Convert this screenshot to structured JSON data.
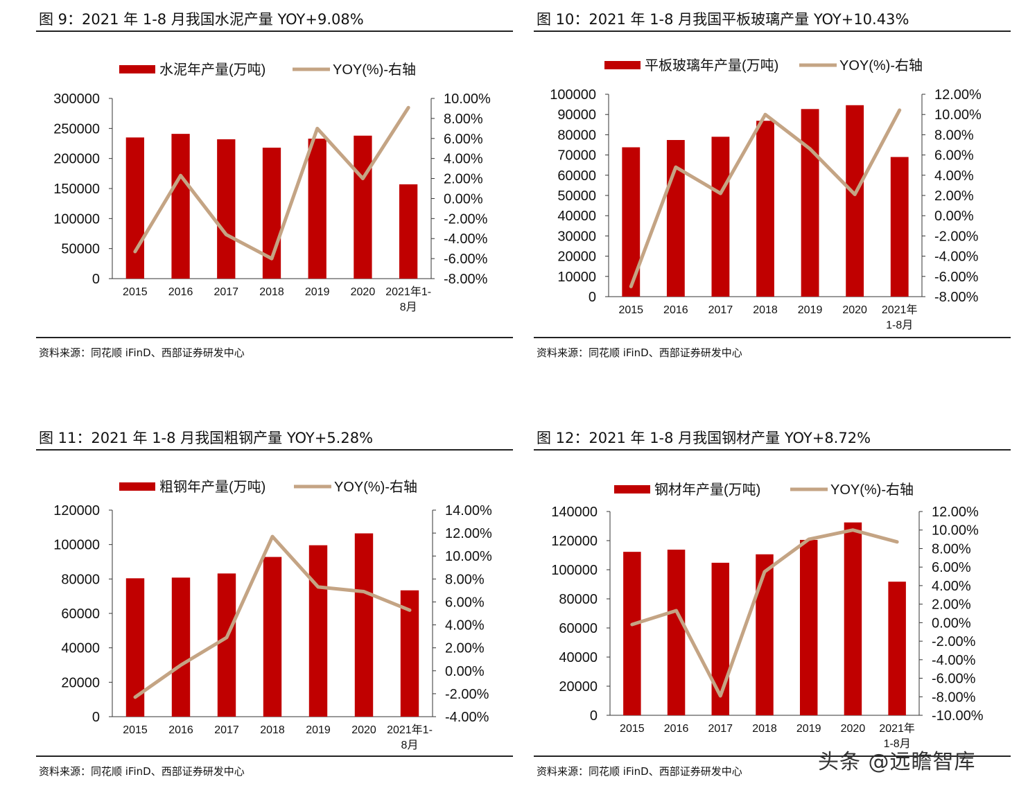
{
  "colors": {
    "bar": "#C00000",
    "line": "#C4A484",
    "axis": "#333333"
  },
  "watermark": "头条 @远瞻智库",
  "panels": [
    {
      "title": "图 9：2021 年 1-8 月我国水泥产量 YOY+9.08%",
      "source": "资料来源：同花顺 iFinD、西部证券研发中心",
      "chart_data": {
        "type": "bar+line",
        "categories": [
          [
            "2015"
          ],
          [
            "2016"
          ],
          [
            "2017"
          ],
          [
            "2018"
          ],
          [
            "2019"
          ],
          [
            "2020"
          ],
          [
            "2021年1-",
            "8月"
          ]
        ],
        "series": [
          {
            "name": "水泥年产量(万吨)",
            "type": "bar",
            "axis": "left",
            "values": [
              235000,
              241000,
              232000,
              218000,
              233000,
              238000,
              157000
            ]
          },
          {
            "name": "YOY(%)-右轴",
            "type": "line",
            "axis": "right",
            "values": [
              -5.3,
              2.3,
              -3.6,
              -6.0,
              7.0,
              2.0,
              9.08
            ]
          }
        ],
        "left_axis": {
          "min": 0,
          "max": 300000,
          "step": 50000,
          "ticks": [
            "0",
            "50000",
            "100000",
            "150000",
            "200000",
            "250000",
            "300000"
          ]
        },
        "right_axis": {
          "min": -8,
          "max": 10,
          "step": 2,
          "ticks": [
            "-8.00%",
            "-6.00%",
            "-4.00%",
            "-2.00%",
            "0.00%",
            "2.00%",
            "4.00%",
            "6.00%",
            "8.00%",
            "10.00%"
          ]
        }
      }
    },
    {
      "title": "图 10：2021 年 1-8 月我国平板玻璃产量 YOY+10.43%",
      "source": "资料来源：同花顺 iFinD、西部证券研发中心",
      "chart_data": {
        "type": "bar+line",
        "categories": [
          [
            "2015"
          ],
          [
            "2016"
          ],
          [
            "2017"
          ],
          [
            "2018"
          ],
          [
            "2019"
          ],
          [
            "2020"
          ],
          [
            "2021年",
            "1-8月"
          ]
        ],
        "series": [
          {
            "name": "平板玻璃年产量(万吨)",
            "type": "bar",
            "axis": "left",
            "values": [
              73800,
              77400,
              79000,
              86900,
              92700,
              94600,
              69000
            ]
          },
          {
            "name": "YOY(%)-右轴",
            "type": "line",
            "axis": "right",
            "values": [
              -7.0,
              4.8,
              2.2,
              10.0,
              6.6,
              2.1,
              10.43
            ]
          }
        ],
        "left_axis": {
          "min": 0,
          "max": 100000,
          "step": 10000,
          "ticks": [
            "0",
            "10000",
            "20000",
            "30000",
            "40000",
            "50000",
            "60000",
            "70000",
            "80000",
            "90000",
            "100000"
          ]
        },
        "right_axis": {
          "min": -8,
          "max": 12,
          "step": 2,
          "ticks": [
            "-8.00%",
            "-6.00%",
            "-4.00%",
            "-2.00%",
            "0.00%",
            "2.00%",
            "4.00%",
            "6.00%",
            "8.00%",
            "10.00%",
            "12.00%"
          ]
        }
      }
    },
    {
      "title": "图 11：2021 年 1-8 月我国粗钢产量 YOY+5.28%",
      "source": "资料来源：同花顺 iFinD、西部证券研发中心",
      "chart_data": {
        "type": "bar+line",
        "categories": [
          [
            "2015"
          ],
          [
            "2016"
          ],
          [
            "2017"
          ],
          [
            "2018"
          ],
          [
            "2019"
          ],
          [
            "2020"
          ],
          [
            "2021年1-",
            "8月"
          ]
        ],
        "series": [
          {
            "name": "粗钢年产量(万吨)",
            "type": "bar",
            "axis": "left",
            "values": [
              80400,
              80800,
              83200,
              92800,
              99600,
              106500,
              73400
            ]
          },
          {
            "name": "YOY(%)-右轴",
            "type": "line",
            "axis": "right",
            "values": [
              -2.3,
              0.5,
              2.9,
              11.7,
              7.3,
              6.9,
              5.28
            ]
          }
        ],
        "left_axis": {
          "min": 0,
          "max": 120000,
          "step": 20000,
          "ticks": [
            "0",
            "20000",
            "40000",
            "60000",
            "80000",
            "100000",
            "120000"
          ]
        },
        "right_axis": {
          "min": -4,
          "max": 14,
          "step": 2,
          "ticks": [
            "-4.00%",
            "-2.00%",
            "0.00%",
            "2.00%",
            "4.00%",
            "6.00%",
            "8.00%",
            "10.00%",
            "12.00%",
            "14.00%"
          ]
        }
      }
    },
    {
      "title": "图 12：2021 年 1-8 月我国钢材产量 YOY+8.72%",
      "source": "资料来源：同花顺 iFinD、西部证券研发中心",
      "chart_data": {
        "type": "bar+line",
        "categories": [
          [
            "2015"
          ],
          [
            "2016"
          ],
          [
            "2017"
          ],
          [
            "2018"
          ],
          [
            "2019"
          ],
          [
            "2020"
          ],
          [
            "2021年",
            "1-8月"
          ]
        ],
        "series": [
          {
            "name": "钢材年产量(万吨)",
            "type": "bar",
            "axis": "left",
            "values": [
              112300,
              113800,
              104800,
              110600,
              120500,
              132500,
              91800
            ]
          },
          {
            "name": "YOY(%)-右轴",
            "type": "line",
            "axis": "right",
            "values": [
              -0.2,
              1.3,
              -7.9,
              5.5,
              9.0,
              10.0,
              8.72
            ]
          }
        ],
        "left_axis": {
          "min": 0,
          "max": 140000,
          "step": 20000,
          "ticks": [
            "0",
            "20000",
            "40000",
            "60000",
            "80000",
            "100000",
            "120000",
            "140000"
          ]
        },
        "right_axis": {
          "min": -10,
          "max": 12,
          "step": 2,
          "ticks": [
            "-10.00%",
            "-8.00%",
            "-6.00%",
            "-4.00%",
            "-2.00%",
            "0.00%",
            "2.00%",
            "4.00%",
            "6.00%",
            "8.00%",
            "10.00%",
            "12.00%"
          ]
        }
      }
    }
  ]
}
